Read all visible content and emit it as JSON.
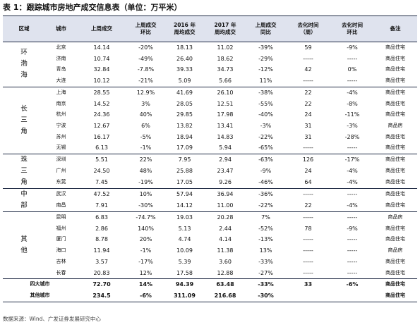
{
  "title": "表 1：跟踪城市房地产成交信息表（单位：万平米）",
  "headers": [
    "区域",
    "城市",
    "上周成交",
    "上周成交\n环比",
    "2016 年\n周均成交",
    "2017 年\n周均成交",
    "上周成交\n同比",
    "去化时间\n（周）",
    "去化时间\n环比",
    "备注"
  ],
  "groups": [
    {
      "region": "环渤海",
      "rows": [
        [
          "北京",
          "14.14",
          "-20%",
          "18.13",
          "11.02",
          "-39%",
          "59",
          "-9%",
          "商品住宅"
        ],
        [
          "济南",
          "10.74",
          "-49%",
          "26.40",
          "18.62",
          "-29%",
          "-----",
          "-----",
          "商品住宅"
        ],
        [
          "青岛",
          "32.84",
          "-7.8%",
          "39.33",
          "34.73",
          "-12%",
          "42",
          "0%",
          "商品住宅"
        ],
        [
          "大连",
          "10.12",
          "-21%",
          "5.09",
          "5.66",
          "11%",
          "-----",
          "-----",
          "商品住宅"
        ]
      ]
    },
    {
      "region": "长三角",
      "rows": [
        [
          "上海",
          "28.55",
          "12.9%",
          "41.69",
          "26.10",
          "-38%",
          "22",
          "-4%",
          "商品住宅"
        ],
        [
          "南京",
          "14.52",
          "3%",
          "28.05",
          "12.51",
          "-55%",
          "22",
          "-8%",
          "商品住宅"
        ],
        [
          "杭州",
          "24.36",
          "40%",
          "29.85",
          "17.98",
          "-40%",
          "24",
          "-11%",
          "商品住宅"
        ],
        [
          "宁波",
          "12.67",
          "6%",
          "13.82",
          "13.41",
          "-3%",
          "31",
          "-3%",
          "商品房"
        ],
        [
          "苏州",
          "16.17",
          "-5%",
          "18.94",
          "14.83",
          "-22%",
          "31",
          "-28%",
          "商品住宅"
        ],
        [
          "无锡",
          "6.13",
          "-1%",
          "17.09",
          "5.94",
          "-65%",
          "-----",
          "-----",
          "商品住宅"
        ]
      ]
    },
    {
      "region": "珠三角",
      "rows": [
        [
          "深圳",
          "5.51",
          "22%",
          "7.95",
          "2.94",
          "-63%",
          "126",
          "-17%",
          "商品住宅"
        ],
        [
          "广州",
          "24.50",
          "48%",
          "25.88",
          "23.47",
          "-9%",
          "24",
          "-4%",
          "商品住宅"
        ],
        [
          "东莞",
          "7.45",
          "-19%",
          "17.05",
          "9.26",
          "-46%",
          "64",
          "-4%",
          "商品住宅"
        ]
      ]
    },
    {
      "region": "中部",
      "rows": [
        [
          "武汉",
          "47.52",
          "10%",
          "57.94",
          "36.94",
          "-36%",
          "-----",
          "-----",
          "商品住宅"
        ],
        [
          "南昌",
          "7.91",
          "-30%",
          "14.12",
          "11.00",
          "-22%",
          "22",
          "-4%",
          "商品住宅"
        ]
      ]
    },
    {
      "region": "其他",
      "rows": [
        [
          "昆明",
          "6.83",
          "-74.7%",
          "19.03",
          "20.28",
          "7%",
          "-----",
          "-----",
          "商品房"
        ],
        [
          "福州",
          "2.86",
          "140%",
          "5.13",
          "2.44",
          "-52%",
          "78",
          "-9%",
          "商品住宅"
        ],
        [
          "厦门",
          "8.78",
          "20%",
          "4.74",
          "4.14",
          "-13%",
          "-----",
          "-----",
          "商品住宅"
        ],
        [
          "海口",
          "11.94",
          "-1%",
          "10.09",
          "11.38",
          "13%",
          "-----",
          "-----",
          "商品房"
        ],
        [
          "吉林",
          "3.57",
          "-17%",
          "5.39",
          "3.60",
          "-33%",
          "-----",
          "-----",
          "商品住宅"
        ],
        [
          "长春",
          "20.83",
          "12%",
          "17.58",
          "12.88",
          "-27%",
          "-----",
          "-----",
          "商品住宅"
        ]
      ]
    }
  ],
  "totals": [
    [
      "四大城市",
      "72.70",
      "14%",
      "94.39",
      "63.48",
      "-33%",
      "33",
      "-6%",
      "商品住宅"
    ],
    [
      "其他城市",
      "234.5",
      "-6%",
      "311.09",
      "216.68",
      "-30%",
      "",
      "",
      "商品住宅"
    ]
  ],
  "source": "数据来源：Wind、广发证券发展研究中心"
}
